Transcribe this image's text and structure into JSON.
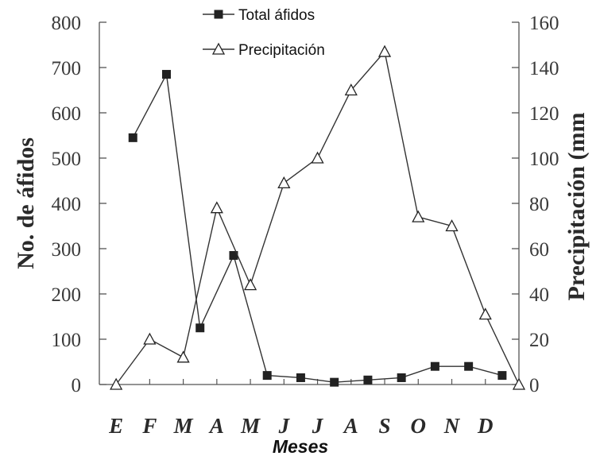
{
  "chart_data": {
    "type": "line",
    "categories": [
      "E",
      "F",
      "M",
      "A",
      "M",
      "J",
      "J",
      "A",
      "S",
      "O",
      "N",
      "D"
    ],
    "xlabel": "Meses",
    "ylabel": "No. de áfidos",
    "y2label": "Precipitación (mm",
    "ylim": [
      0,
      800
    ],
    "y2lim": [
      0,
      160
    ],
    "yticks": [
      0,
      100,
      200,
      300,
      400,
      500,
      600,
      700,
      800
    ],
    "y2ticks": [
      0,
      20,
      40,
      60,
      80,
      100,
      120,
      140,
      160
    ],
    "legend_position": "top-center",
    "grid": false,
    "series": [
      {
        "name": "Total áfidos",
        "axis": "left",
        "marker": "filled-square",
        "x": [
          1,
          2,
          3,
          4,
          5,
          6,
          7,
          8,
          9,
          10,
          11,
          12
        ],
        "values": [
          545,
          685,
          125,
          285,
          20,
          15,
          5,
          10,
          15,
          40,
          40,
          20
        ]
      },
      {
        "name": "Precipitación",
        "axis": "right",
        "marker": "open-triangle",
        "x": [
          0.5,
          1.5,
          2.5,
          3.5,
          4.5,
          5.5,
          6.5,
          7.5,
          8.5,
          9.5,
          10.5,
          11.5,
          12.5
        ],
        "values": [
          0,
          20,
          12,
          78,
          44,
          89,
          100,
          130,
          147,
          74,
          70,
          31,
          0
        ]
      }
    ]
  }
}
